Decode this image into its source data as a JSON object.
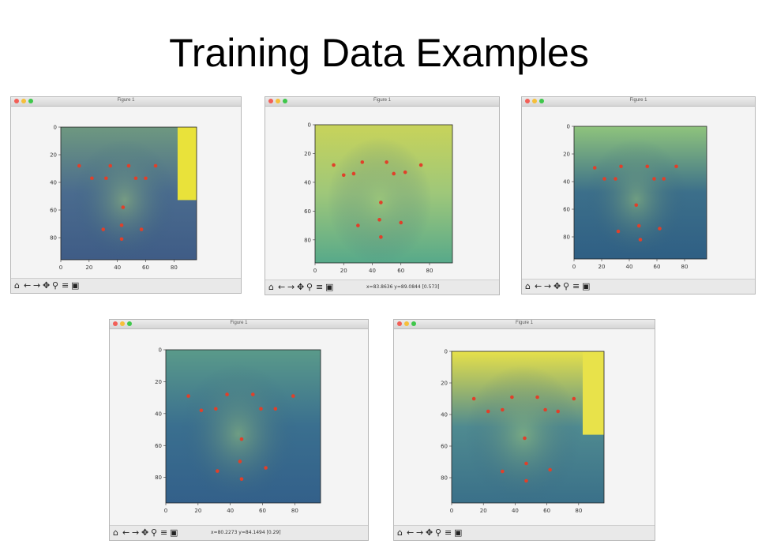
{
  "slide": {
    "title": "Training Data Examples"
  },
  "colors": {
    "landmark": "#e0402a",
    "axes_bg": "#f4f4f4"
  },
  "axis": {
    "y_ticks": [
      "0",
      "20",
      "40",
      "60",
      "80"
    ],
    "x_ticks": [
      "0",
      "20",
      "40",
      "60",
      "80"
    ]
  },
  "toolbar_icons": [
    "home-icon",
    "back-arrow-icon",
    "forward-arrow-icon",
    "pan-icon",
    "zoom-icon",
    "configure-subplots-icon",
    "save-icon"
  ],
  "windows": [
    {
      "title": "Figure 1",
      "coords": "",
      "landmarks": [
        [
          13,
          28
        ],
        [
          22,
          37
        ],
        [
          35,
          28
        ],
        [
          32,
          37
        ],
        [
          48,
          28
        ],
        [
          53,
          37
        ],
        [
          67,
          28
        ],
        [
          60,
          37
        ],
        [
          44,
          58
        ],
        [
          30,
          74
        ],
        [
          43,
          71
        ],
        [
          43,
          81
        ],
        [
          57,
          74
        ]
      ]
    },
    {
      "title": "Figure 1",
      "coords": "x=83.8636    y=89.0844    [0.573]",
      "landmarks": [
        [
          13,
          28
        ],
        [
          20,
          35
        ],
        [
          33,
          26
        ],
        [
          27,
          34
        ],
        [
          50,
          26
        ],
        [
          55,
          34
        ],
        [
          74,
          28
        ],
        [
          63,
          33
        ],
        [
          46,
          54
        ],
        [
          30,
          70
        ],
        [
          45,
          66
        ],
        [
          46,
          78
        ],
        [
          60,
          68
        ]
      ]
    },
    {
      "title": "Figure 1",
      "coords": "",
      "landmarks": [
        [
          15,
          30
        ],
        [
          22,
          38
        ],
        [
          34,
          29
        ],
        [
          30,
          38
        ],
        [
          53,
          29
        ],
        [
          58,
          38
        ],
        [
          74,
          29
        ],
        [
          65,
          38
        ],
        [
          45,
          57
        ],
        [
          32,
          76
        ],
        [
          47,
          72
        ],
        [
          48,
          82
        ],
        [
          62,
          74
        ]
      ]
    },
    {
      "title": "Figure 1",
      "coords": "x=80.2273    y=84.1494    [0.29]",
      "landmarks": [
        [
          14,
          29
        ],
        [
          22,
          38
        ],
        [
          38,
          28
        ],
        [
          31,
          37
        ],
        [
          54,
          28
        ],
        [
          59,
          37
        ],
        [
          79,
          29
        ],
        [
          68,
          37
        ],
        [
          47,
          56
        ],
        [
          32,
          76
        ],
        [
          46,
          70
        ],
        [
          47,
          81
        ],
        [
          62,
          74
        ]
      ]
    },
    {
      "title": "Figure 1",
      "coords": "",
      "landmarks": [
        [
          14,
          30
        ],
        [
          23,
          38
        ],
        [
          38,
          29
        ],
        [
          32,
          37
        ],
        [
          54,
          29
        ],
        [
          59,
          37
        ],
        [
          77,
          30
        ],
        [
          67,
          38
        ],
        [
          46,
          55
        ],
        [
          32,
          76
        ],
        [
          47,
          71
        ],
        [
          47,
          82
        ],
        [
          62,
          75
        ]
      ]
    }
  ]
}
